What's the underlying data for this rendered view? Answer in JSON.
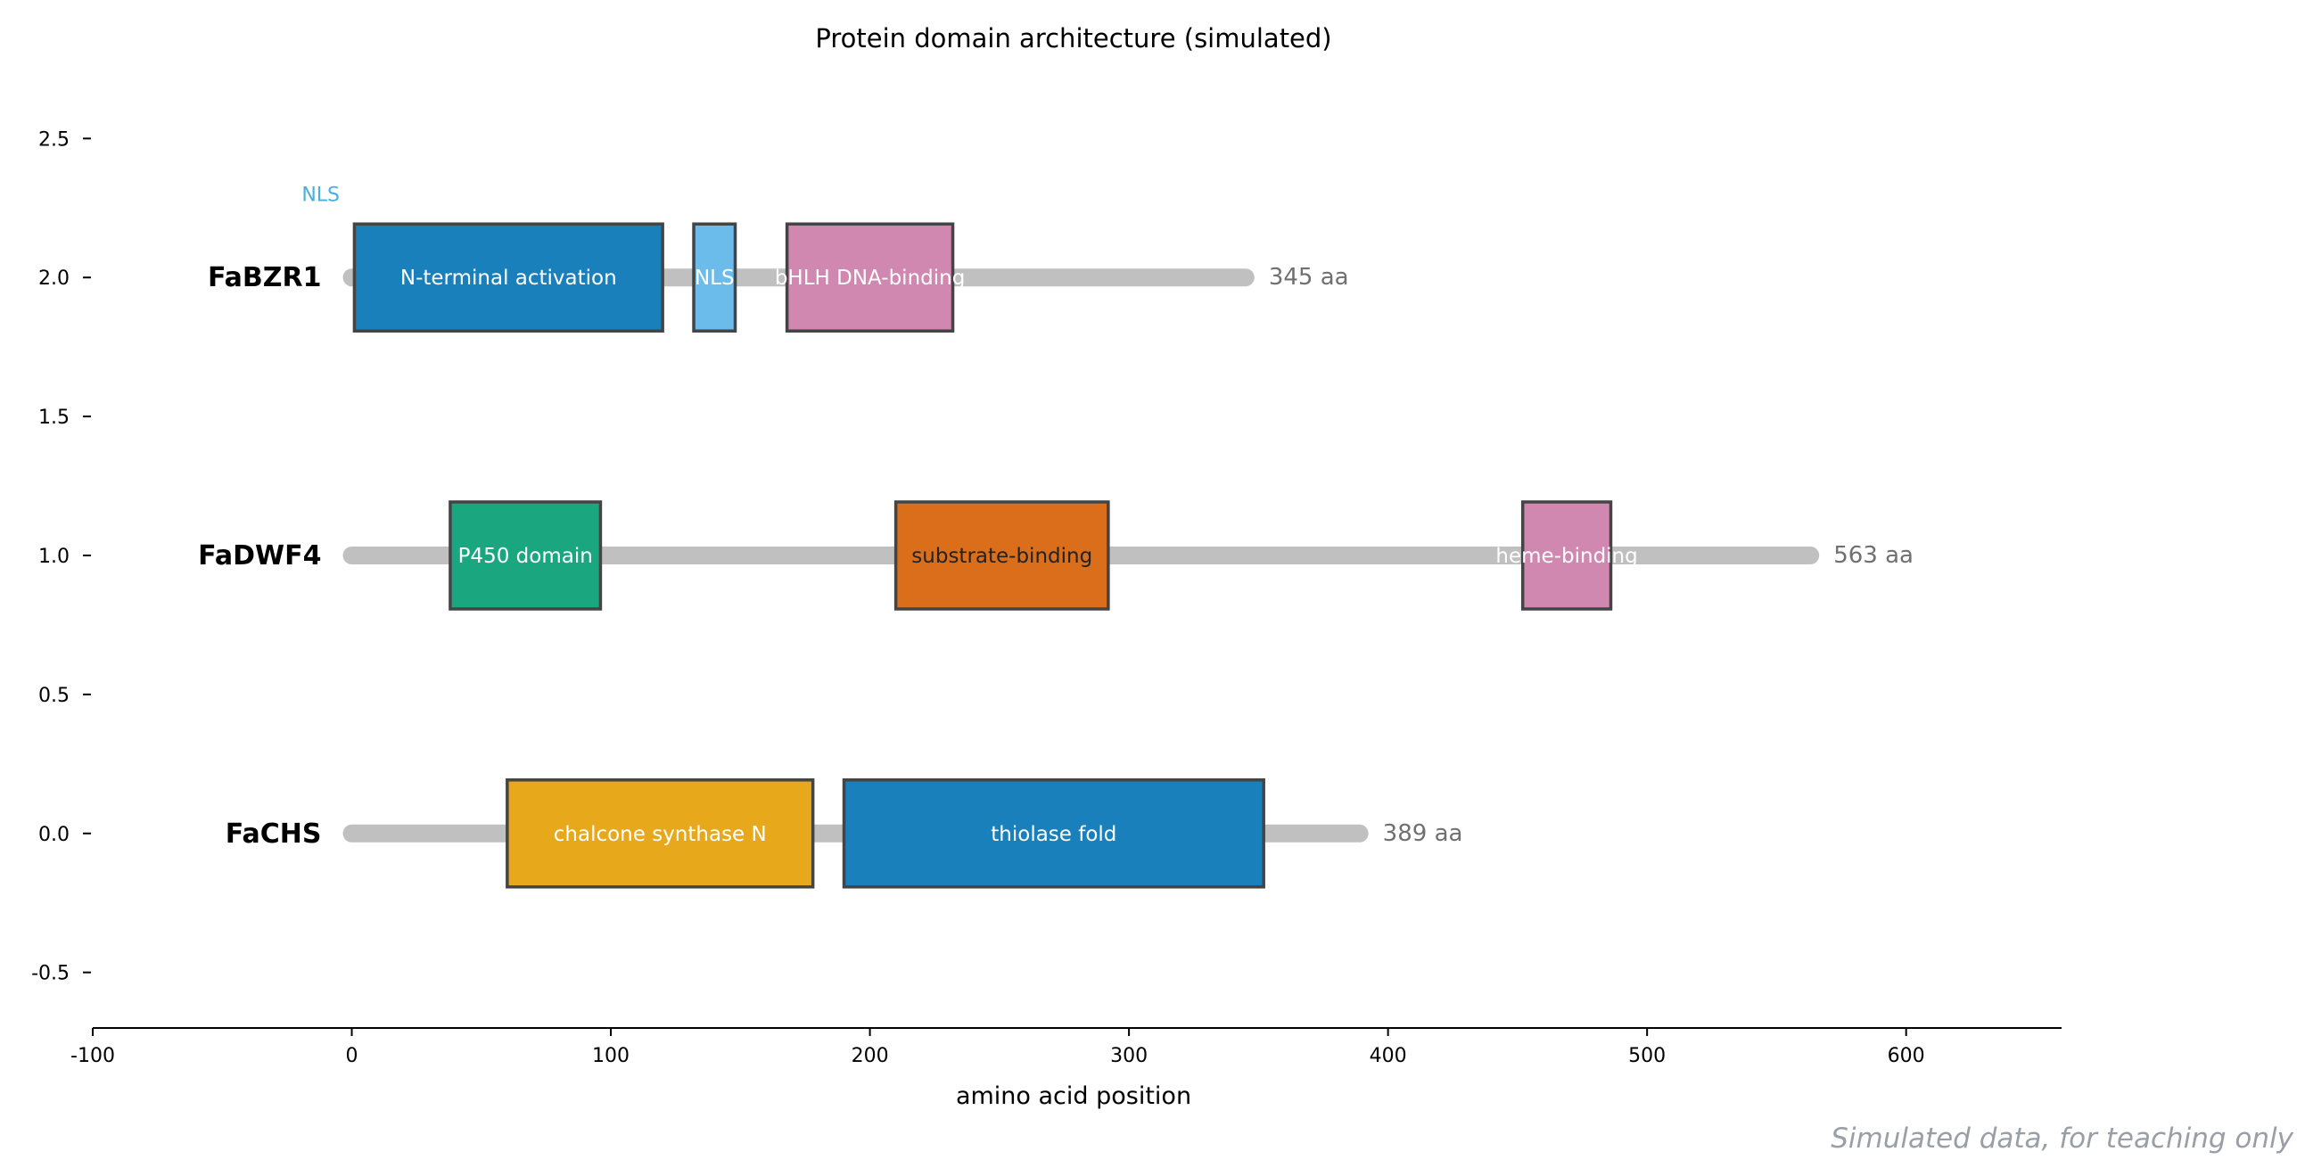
{
  "chart_data": {
    "type": "bar",
    "title": "Protein domain architecture (simulated)",
    "xlabel": "amino acid position",
    "ylabel": "",
    "xlim": [
      -100,
      660
    ],
    "ylim": [
      -0.7,
      2.7
    ],
    "xticks": [
      -100,
      0,
      100,
      200,
      300,
      400,
      500,
      600
    ],
    "xtick_labels": [
      "-100",
      "0",
      "100",
      "200",
      "300",
      "400",
      "500",
      "600"
    ],
    "yticks": [
      -0.5,
      0.0,
      0.5,
      1.0,
      1.5,
      2.0,
      2.5
    ],
    "ytick_labels": [
      "-0.5",
      "0.0",
      "0.5",
      "1.0",
      "1.5",
      "2.0",
      "2.5"
    ],
    "grid": false,
    "proteins": [
      {
        "name": "FaBZR1",
        "y": 2.0,
        "length": 345,
        "length_label": "345 aa",
        "domains": [
          {
            "label": "N-terminal activation",
            "start": 1,
            "end": 120,
            "color": "#1a80bb",
            "text_color": "#ffffff"
          },
          {
            "label": "NLS",
            "start": 132,
            "end": 148,
            "color": "#6bbceb",
            "text_color": "#ffffff"
          },
          {
            "label": "bHLH DNA-binding",
            "start": 168,
            "end": 232,
            "color": "#d087b0",
            "text_color": "#ffffff"
          }
        ]
      },
      {
        "name": "FaDWF4",
        "y": 1.0,
        "length": 563,
        "length_label": "563 aa",
        "domains": [
          {
            "label": "P450 domain",
            "start": 38,
            "end": 96,
            "color": "#1aa77f",
            "text_color": "#ffffff"
          },
          {
            "label": "substrate-binding",
            "start": 210,
            "end": 292,
            "color": "#da6e1a",
            "text_color": "#222222"
          },
          {
            "label": "heme-binding",
            "start": 452,
            "end": 486,
            "color": "#d087b0",
            "text_color": "#ffffff"
          }
        ]
      },
      {
        "name": "FaCHS",
        "y": 0.0,
        "length": 389,
        "length_label": "389 aa",
        "domains": [
          {
            "label": "chalcone synthase N",
            "start": 60,
            "end": 178,
            "color": "#e8a81c",
            "text_color": "#ffffff"
          },
          {
            "label": "thiolase fold",
            "start": 190,
            "end": 352,
            "color": "#1a80bb",
            "text_color": "#ffffff"
          }
        ]
      }
    ],
    "annotations": [
      {
        "text": "NLS",
        "x": -12,
        "y": 2.3,
        "color": "#4aaee0"
      }
    ],
    "backbone_color": "#c0c0c0",
    "domain_edge_color": "#444444"
  },
  "footer": {
    "watermark": "Simulated data, for teaching only"
  }
}
